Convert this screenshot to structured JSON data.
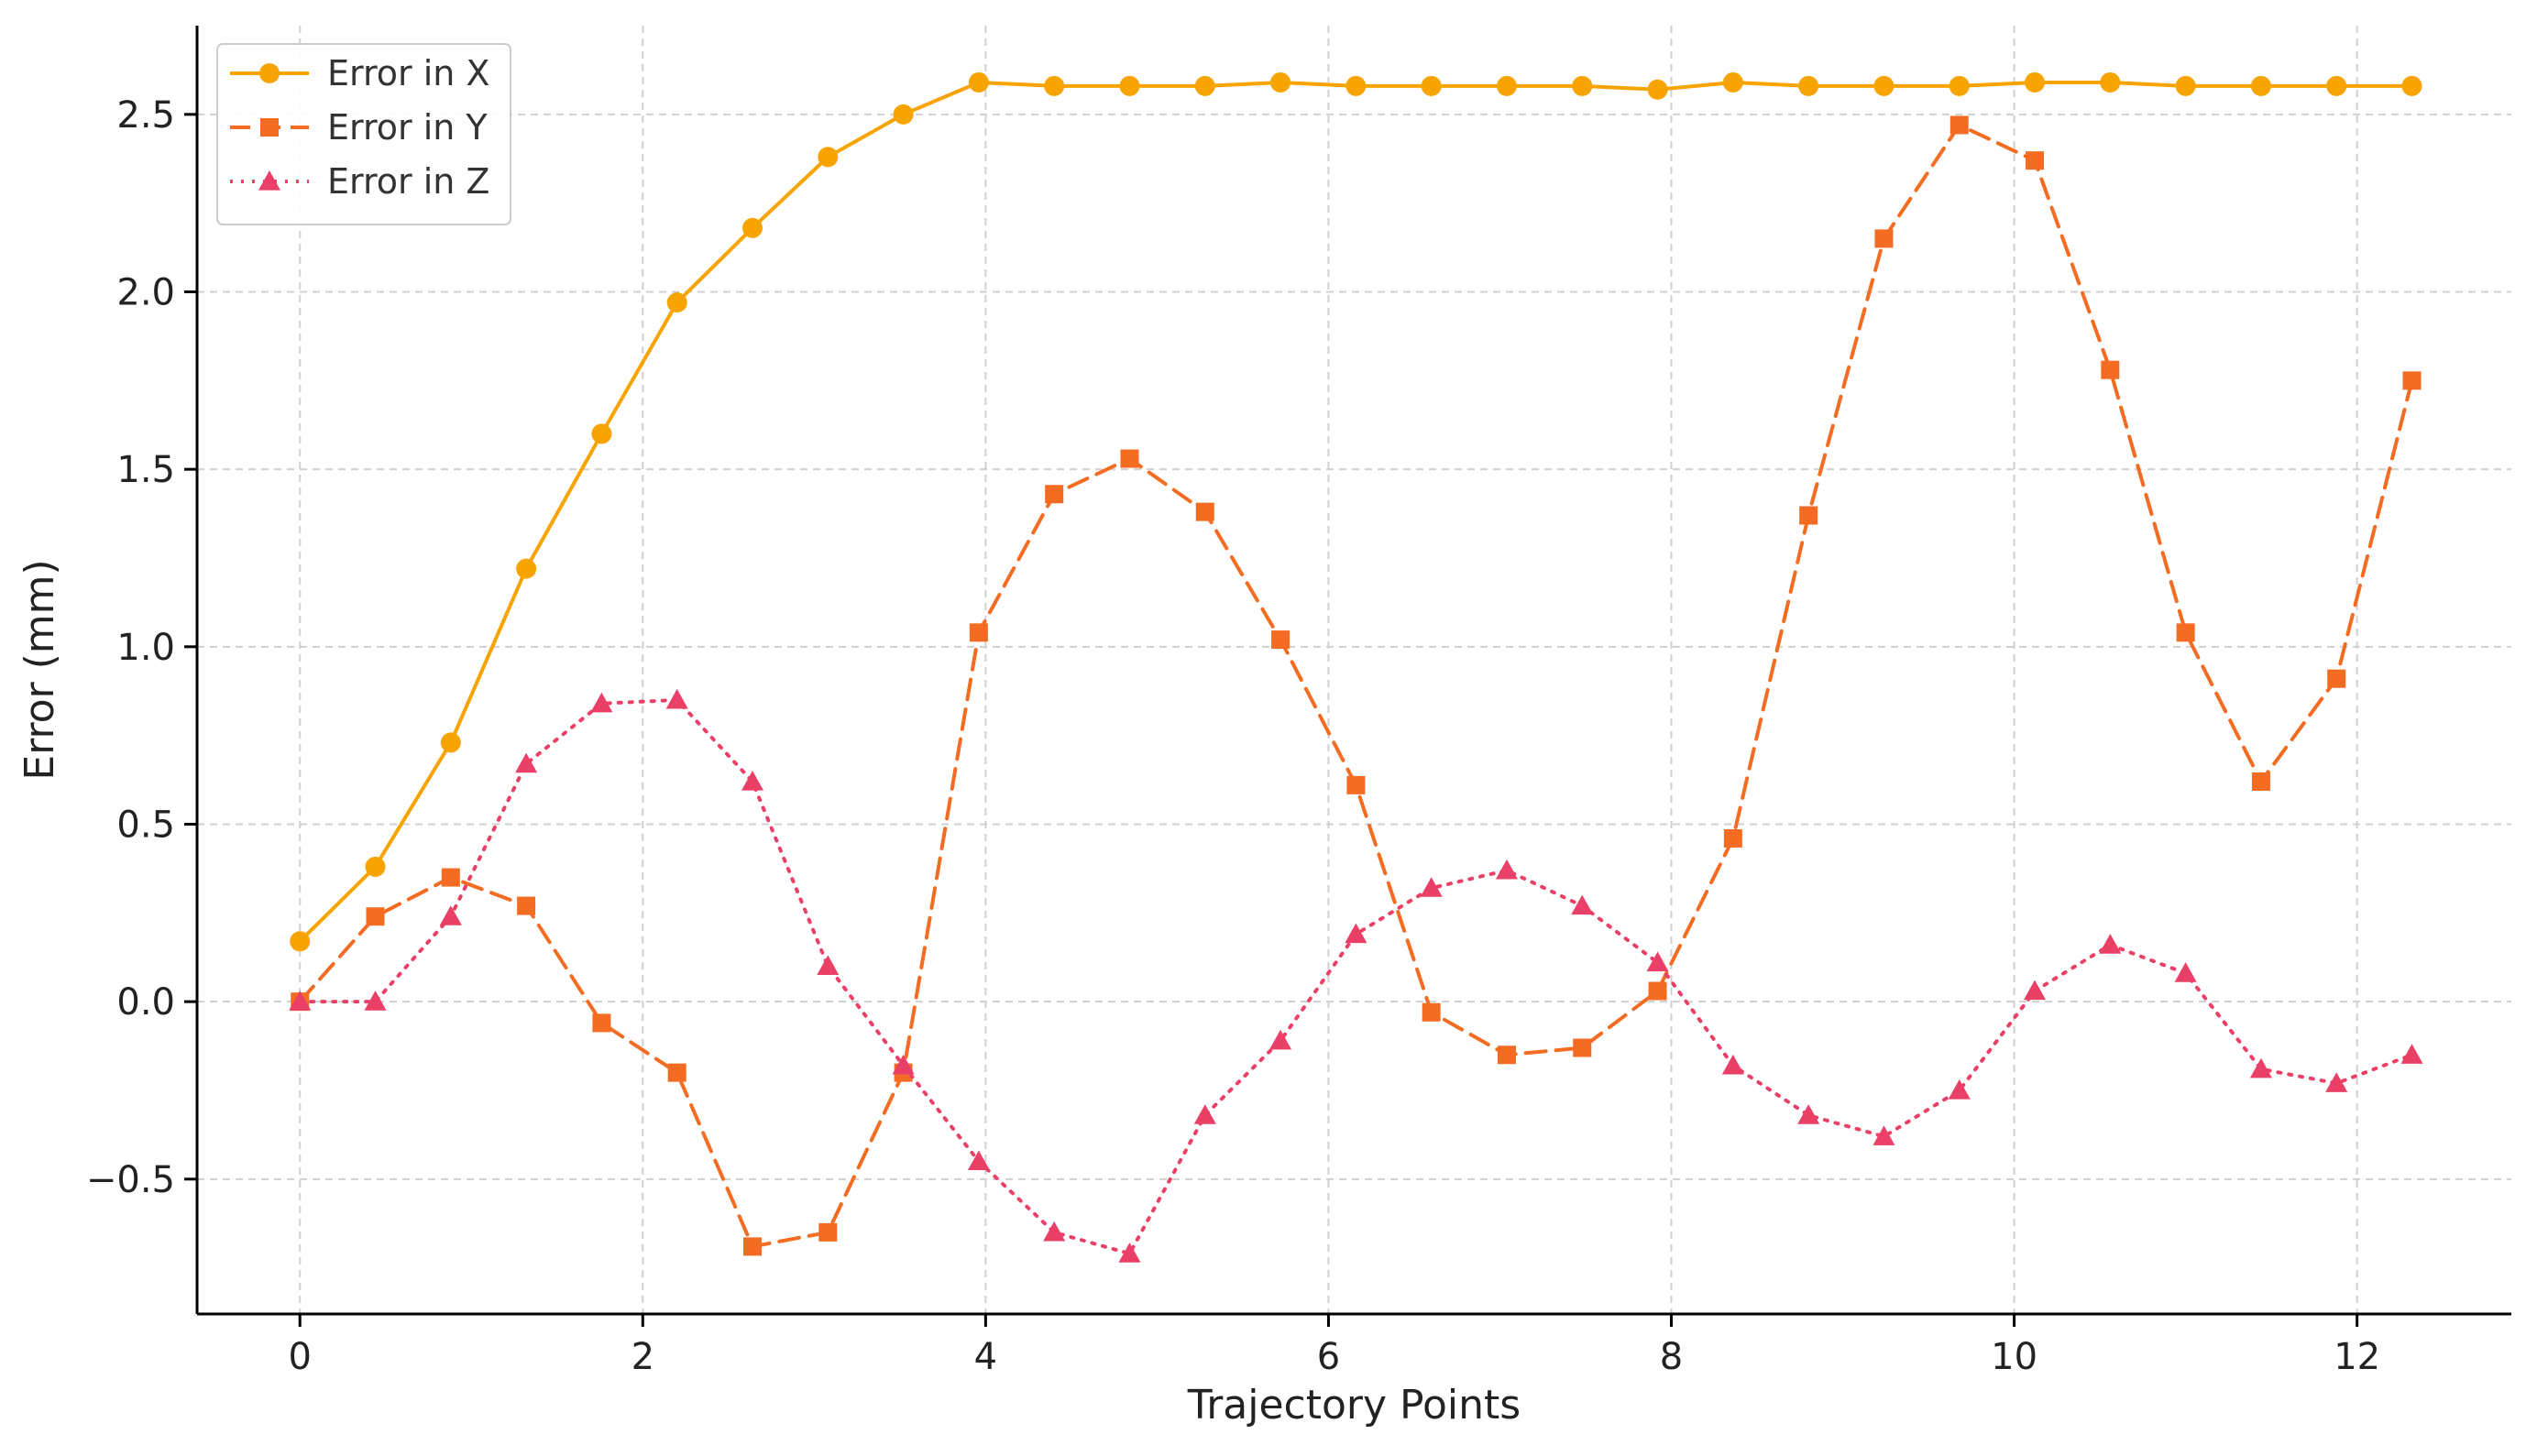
{
  "chart_data": {
    "type": "line",
    "title": "",
    "xlabel": "Trajectory Points",
    "ylabel": "Error (mm)",
    "xlim": [
      -0.6,
      12.9
    ],
    "ylim": [
      -0.88,
      2.75
    ],
    "xticks": [
      0,
      2,
      4,
      6,
      8,
      10,
      12
    ],
    "xtick_labels": [
      "0",
      "2",
      "4",
      "6",
      "8",
      "10",
      "12"
    ],
    "yticks": [
      -0.5,
      0.0,
      0.5,
      1.0,
      1.5,
      2.0,
      2.5
    ],
    "ytick_labels": [
      "−0.5",
      "0.0",
      "0.5",
      "1.0",
      "1.5",
      "2.0",
      "2.5"
    ],
    "grid": true,
    "legend_position": "top-left",
    "x": [
      0,
      0.44,
      0.88,
      1.32,
      1.76,
      2.2,
      2.64,
      3.08,
      3.52,
      3.96,
      4.4,
      4.84,
      5.28,
      5.72,
      6.16,
      6.6,
      7.04,
      7.48,
      7.92,
      8.36,
      8.8,
      9.24,
      9.68,
      10.12,
      10.56,
      11.0,
      11.44,
      11.88,
      12.32
    ],
    "series": [
      {
        "name": "Error in X",
        "color": "#F7A400",
        "line_style": "solid",
        "marker": "circle",
        "values": [
          0.17,
          0.38,
          0.73,
          1.22,
          1.6,
          1.97,
          2.18,
          2.38,
          2.5,
          2.59,
          2.58,
          2.58,
          2.58,
          2.59,
          2.58,
          2.58,
          2.58,
          2.58,
          2.57,
          2.59,
          2.58,
          2.58,
          2.58,
          2.59,
          2.59,
          2.58,
          2.58,
          2.58,
          2.58
        ]
      },
      {
        "name": "Error in Y",
        "color": "#F46C22",
        "line_style": "dashed",
        "marker": "square",
        "values": [
          0.0,
          0.24,
          0.35,
          0.27,
          -0.06,
          -0.2,
          -0.69,
          -0.65,
          -0.2,
          1.04,
          1.43,
          1.53,
          1.38,
          1.02,
          0.61,
          -0.03,
          -0.15,
          -0.13,
          0.03,
          0.46,
          1.37,
          2.15,
          2.47,
          2.37,
          1.78,
          1.04,
          0.62,
          0.91,
          1.75
        ]
      },
      {
        "name": "Error in Z",
        "color": "#EA3F67",
        "line_style": "dotted",
        "marker": "triangle",
        "values": [
          0.0,
          0.0,
          0.24,
          0.67,
          0.84,
          0.85,
          0.62,
          0.1,
          -0.18,
          -0.45,
          -0.65,
          -0.71,
          -0.32,
          -0.11,
          0.19,
          0.32,
          0.37,
          0.27,
          0.11,
          -0.18,
          -0.32,
          -0.38,
          -0.25,
          0.03,
          0.16,
          0.08,
          -0.19,
          -0.23,
          -0.15
        ]
      }
    ]
  }
}
